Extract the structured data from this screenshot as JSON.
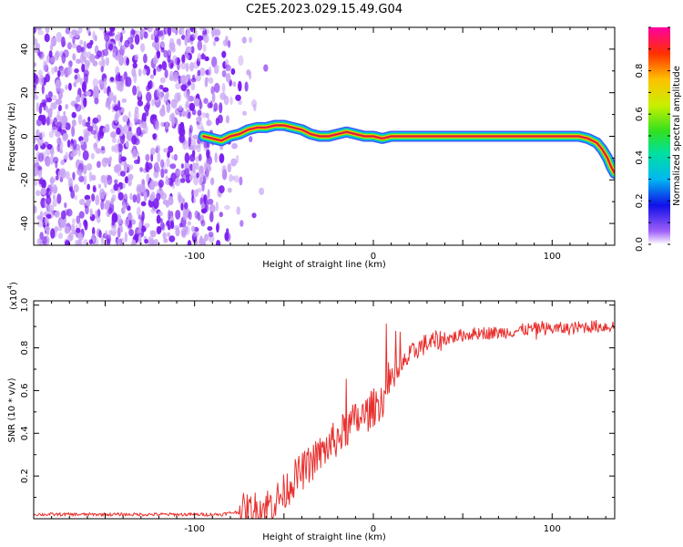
{
  "title": "C2E5.2023.029.15.49.G04",
  "colors": {
    "snr_line": "#e8302e",
    "ridge": "#d8184a",
    "noise": "#7a1cf0",
    "noise_light": "#c8a4f4",
    "axis": "#000000"
  },
  "spectrogram": {
    "type": "heatmap",
    "xlabel": "Height of straight line (km)",
    "ylabel": "Frequency (Hz)",
    "xlim": [
      -190,
      135
    ],
    "ylim": [
      -50,
      50
    ],
    "x_ticks": [
      -100,
      0,
      100
    ],
    "y_ticks": [
      -40,
      -20,
      0,
      20,
      40
    ],
    "noise_region_x": [
      -190,
      -70
    ],
    "ridge": {
      "x": [
        -95,
        -90,
        -85,
        -80,
        -75,
        -70,
        -65,
        -60,
        -55,
        -50,
        -45,
        -40,
        -35,
        -30,
        -25,
        -20,
        -15,
        -10,
        -5,
        0,
        5,
        10,
        40,
        80,
        110,
        115,
        120,
        125,
        128,
        131,
        133,
        135
      ],
      "y": [
        0,
        -1,
        -2,
        0,
        1,
        3,
        4,
        4,
        5,
        5,
        4,
        3,
        1,
        0,
        0,
        1,
        2,
        1,
        0,
        0,
        -1,
        0,
        0,
        0,
        0,
        0,
        -1,
        -3,
        -6,
        -10,
        -14,
        -17
      ]
    },
    "colorbar": {
      "label": "Normalized spectral amplitude",
      "ticks": [
        "0.0",
        "0.2",
        "0.4",
        "0.6",
        "0.8"
      ],
      "range": [
        0,
        1
      ]
    }
  },
  "chart_data": {
    "type": "line",
    "title": "",
    "xlabel": "Height of straight line (km)",
    "ylabel": "SNR (10 * v/v)",
    "y_multiplier": "(x10",
    "y_multiplier_exp": "4",
    "y_multiplier_close": ")",
    "xlim": [
      -190,
      135
    ],
    "ylim": [
      0,
      1.02
    ],
    "x_ticks": [
      -100,
      0,
      100
    ],
    "y_ticks": [
      0.2,
      0.4,
      0.6,
      0.8,
      1.0
    ],
    "series": [
      {
        "x": [
          -190,
          -150,
          -100,
          -85,
          -78,
          -70,
          -62,
          -55,
          -50,
          -45,
          -40,
          -35,
          -30,
          -25,
          -20,
          -15,
          -10,
          -5,
          0,
          5,
          10,
          15,
          20,
          25,
          30,
          40,
          50,
          60,
          70,
          80,
          90,
          100,
          110,
          120,
          135
        ],
        "y": [
          0.02,
          0.02,
          0.02,
          0.02,
          0.03,
          0.03,
          0.05,
          0.08,
          0.12,
          0.18,
          0.22,
          0.26,
          0.3,
          0.34,
          0.38,
          0.42,
          0.46,
          0.48,
          0.52,
          0.56,
          0.62,
          0.7,
          0.76,
          0.8,
          0.82,
          0.84,
          0.86,
          0.87,
          0.87,
          0.88,
          0.89,
          0.89,
          0.89,
          0.9,
          0.9
        ]
      }
    ]
  }
}
